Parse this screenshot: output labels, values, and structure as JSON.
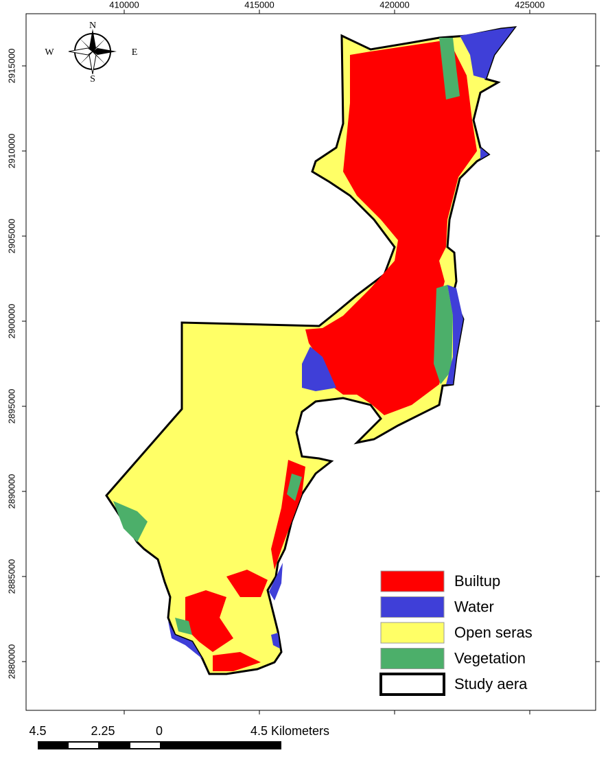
{
  "map": {
    "eastings": [
      410000,
      415000,
      420000,
      425000
    ],
    "northings": [
      2915000,
      2910000,
      2905000,
      2900000,
      2895000,
      2890000,
      2885000,
      2880000
    ],
    "compass": {
      "n": "N",
      "e": "E",
      "s": "S",
      "w": "W"
    },
    "legend": [
      {
        "label": "Builtup",
        "color": "#ff0000"
      },
      {
        "label": "Water",
        "color": "#3f3fd8"
      },
      {
        "label": "Open seras",
        "color": "#ffff66"
      },
      {
        "label": "Vegetation",
        "color": "#4caf6a"
      },
      {
        "label": "Study aera",
        "color": "#ffffff"
      }
    ],
    "scale_bar": {
      "labels": [
        "4.5",
        "2.25",
        "0",
        "4.5 Kilometers"
      ]
    }
  }
}
